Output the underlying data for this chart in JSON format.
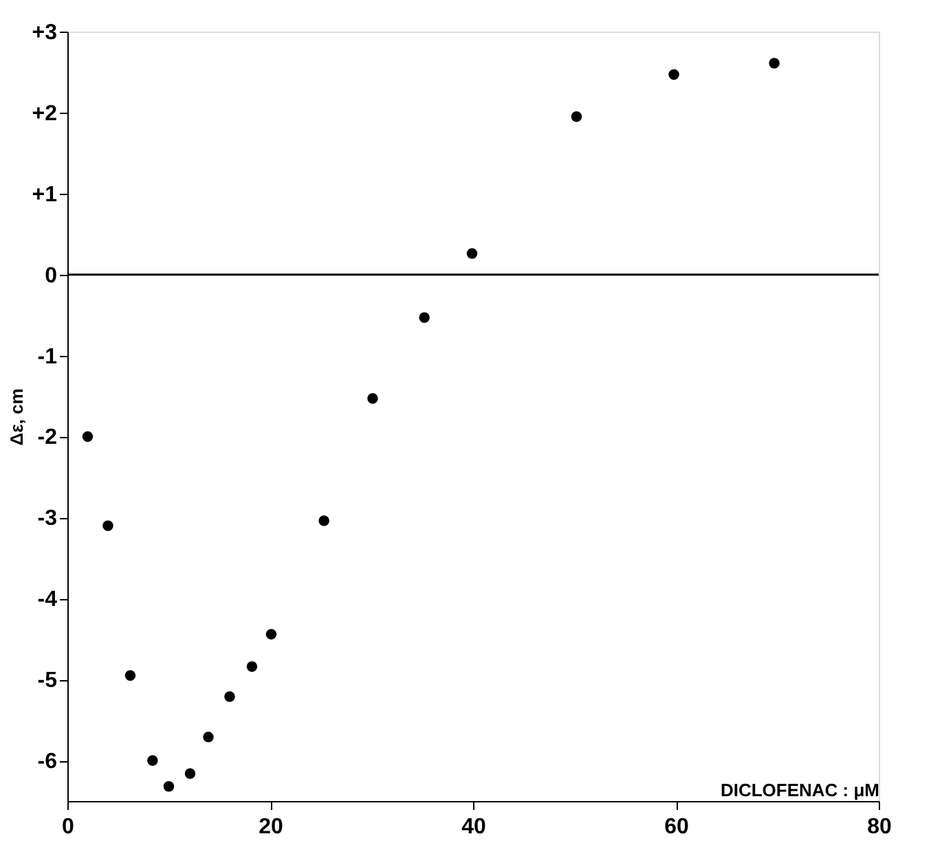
{
  "chart_data": {
    "type": "scatter",
    "xlabel": "DICLOFENAC  :  μM",
    "ylabel": "Δε, cm",
    "x": [
      2,
      4,
      6.2,
      8.4,
      10,
      12.1,
      13.9,
      16,
      18.2,
      20.1,
      25.3,
      30.1,
      35.2,
      39.9,
      50.2,
      59.8,
      69.7
    ],
    "values": [
      -2.0,
      -3.1,
      -4.95,
      -6.0,
      -6.32,
      -6.16,
      -5.71,
      -5.21,
      -4.84,
      -4.44,
      -3.04,
      -1.53,
      -0.53,
      0.26,
      1.95,
      2.47,
      2.61
    ],
    "color": "#000000",
    "marker": "circle",
    "xlim": [
      0,
      80
    ],
    "xticks": [
      0,
      20,
      40,
      60,
      80
    ],
    "ylim": [
      -6.5,
      3
    ],
    "yticks": [
      {
        "value": 3,
        "label": "+3"
      },
      {
        "value": 2,
        "label": "+2"
      },
      {
        "value": 1,
        "label": "+1"
      },
      {
        "value": 0,
        "label": "0"
      },
      {
        "value": -1,
        "label": "-1"
      },
      {
        "value": -2,
        "label": "-2"
      },
      {
        "value": -3,
        "label": "-3"
      },
      {
        "value": -4,
        "label": "-4"
      },
      {
        "value": -5,
        "label": "-5"
      },
      {
        "value": -6,
        "label": "-6"
      }
    ],
    "ref_lines": [
      {
        "axis": "y",
        "value": 0,
        "color": "#000000"
      }
    ],
    "grid": false
  }
}
